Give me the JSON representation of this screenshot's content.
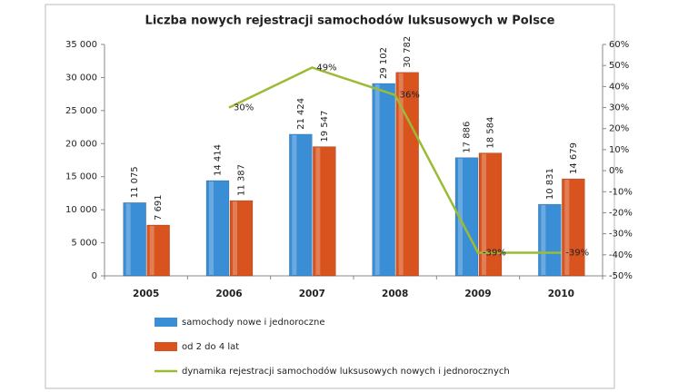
{
  "chart_data": {
    "type": "bar",
    "title": "Liczba nowych rejestracji samochodów luksusowych w Polsce",
    "categories": [
      "2005",
      "2006",
      "2007",
      "2008",
      "2009",
      "2010"
    ],
    "series": [
      {
        "name": "samochody nowe i jednoroczne",
        "color": "#3a8ed6",
        "values": [
          11075,
          14414,
          21424,
          29102,
          17886,
          10831
        ],
        "value_labels": [
          "11 075",
          "14 414",
          "21 424",
          "29 102",
          "17 886",
          "10 831"
        ]
      },
      {
        "name": "od 2 do 4 lat",
        "color": "#d9531e",
        "values": [
          7691,
          11387,
          19547,
          30782,
          18584,
          14679
        ],
        "value_labels": [
          "7 691",
          "11 387",
          "19 547",
          "30 782",
          "18 584",
          "14 679"
        ]
      },
      {
        "name": "dynamika rejestracji samochodów luksusowych nowych i jednorocznych",
        "color": "#9bbb34",
        "type": "line",
        "axis": "y2",
        "values": [
          null,
          30,
          49,
          36,
          -39,
          -39
        ],
        "value_labels": [
          null,
          "30%",
          "49%",
          "36%",
          "-39%",
          "-39%"
        ]
      }
    ],
    "ylim": [
      0,
      35000
    ],
    "yticks": [
      0,
      {
        "value": 5000,
        "label": "5 000"
      },
      {
        "value": 10000,
        "label": "10 000"
      },
      {
        "value": 15000,
        "label": "15 000"
      },
      {
        "value": 20000,
        "label": "20 000"
      },
      {
        "value": 25000,
        "label": "25 000"
      },
      {
        "value": 30000,
        "label": "30 000"
      },
      {
        "value": 35000,
        "label": "35 000"
      }
    ],
    "y2lim": [
      -50,
      60
    ],
    "y2ticks": [
      {
        "value": -50,
        "label": "-50%"
      },
      {
        "value": -40,
        "label": "-40%"
      },
      {
        "value": -30,
        "label": "-30%"
      },
      {
        "value": -20,
        "label": "-20%"
      },
      {
        "value": -10,
        "label": "-10%"
      },
      {
        "value": 0,
        "label": "0%"
      },
      {
        "value": 10,
        "label": "10%"
      },
      {
        "value": 20,
        "label": "20%"
      },
      {
        "value": 30,
        "label": "30%"
      },
      {
        "value": 40,
        "label": "40%"
      },
      {
        "value": 50,
        "label": "50%"
      },
      {
        "value": 60,
        "label": "60%"
      }
    ],
    "grid": false
  }
}
